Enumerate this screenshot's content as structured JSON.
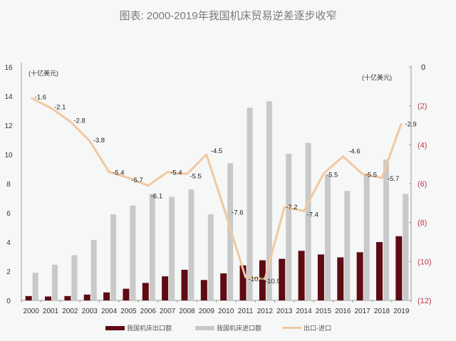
{
  "title": "图表: 2000-2019年我国机床贸易逆差逐步收窄",
  "colors": {
    "export_bar": "#5e0b14",
    "import_bar": "#c9c9c9",
    "balance_line": "#f1c8a0",
    "right_axis_label": "#c0394a",
    "background": "#f6f7f7"
  },
  "left_axis": {
    "unit": "(十亿美元)",
    "ticks": [
      "0",
      "2",
      "4",
      "6",
      "8",
      "10",
      "12",
      "14",
      "16"
    ]
  },
  "right_axis": {
    "unit": "(十亿美元)",
    "ticks": [
      "0",
      "(2)",
      "(4)",
      "(6)",
      "(8)",
      "(10)",
      "(12)"
    ]
  },
  "legend": {
    "export": "我国机床出口额",
    "import": "我国机床进口额",
    "balance": "出口-进口"
  },
  "chart_data": {
    "type": "bar+line",
    "title": "图表: 2000-2019年我国机床贸易逆差逐步收窄",
    "xlabel": "",
    "ylabel": "十亿美元",
    "ylabel_right": "十亿美元",
    "ylim": [
      0,
      16
    ],
    "ylim_right": [
      -12,
      0
    ],
    "grid": false,
    "legend_position": "bottom",
    "categories": [
      "2000",
      "2001",
      "2002",
      "2003",
      "2004",
      "2005",
      "2006",
      "2007",
      "2008",
      "2009",
      "2010",
      "2011",
      "2012",
      "2013",
      "2014",
      "2015",
      "2016",
      "2017",
      "2018",
      "2019"
    ],
    "series": [
      {
        "name": "我国机床出口额",
        "type": "bar",
        "axis": "left",
        "values": [
          0.3,
          0.27,
          0.3,
          0.4,
          0.55,
          0.8,
          1.2,
          1.65,
          2.1,
          1.4,
          1.85,
          2.4,
          2.75,
          2.85,
          3.4,
          3.15,
          2.95,
          3.3,
          4.0,
          4.4
        ]
      },
      {
        "name": "我国机床进口额",
        "type": "bar",
        "axis": "left",
        "values": [
          1.9,
          2.45,
          3.1,
          4.15,
          5.9,
          6.5,
          7.3,
          7.1,
          7.6,
          5.9,
          9.4,
          13.2,
          13.65,
          10.05,
          10.8,
          8.6,
          7.5,
          8.6,
          9.65,
          7.3
        ]
      },
      {
        "name": "出口-进口",
        "type": "line",
        "axis": "right",
        "values": [
          -1.6,
          -2.1,
          -2.8,
          -3.8,
          -5.4,
          -5.7,
          -6.1,
          -5.4,
          -5.5,
          -4.5,
          -7.6,
          -10.8,
          -10.9,
          -7.2,
          -7.4,
          -5.5,
          -4.6,
          -5.5,
          -5.7,
          -2.9
        ],
        "labels": [
          "-1.6",
          "-2.1",
          "-2.8",
          "-3.8",
          "-5.4",
          "-5.7",
          "-6.1",
          "-5.4",
          "-5.5",
          "-4.5",
          "-7.6",
          "-10.8",
          "-10.9",
          "-7.2",
          "-7.4",
          "-5.5",
          "-4.6",
          "-5.5",
          "-5.7",
          "-2.9"
        ]
      }
    ]
  }
}
